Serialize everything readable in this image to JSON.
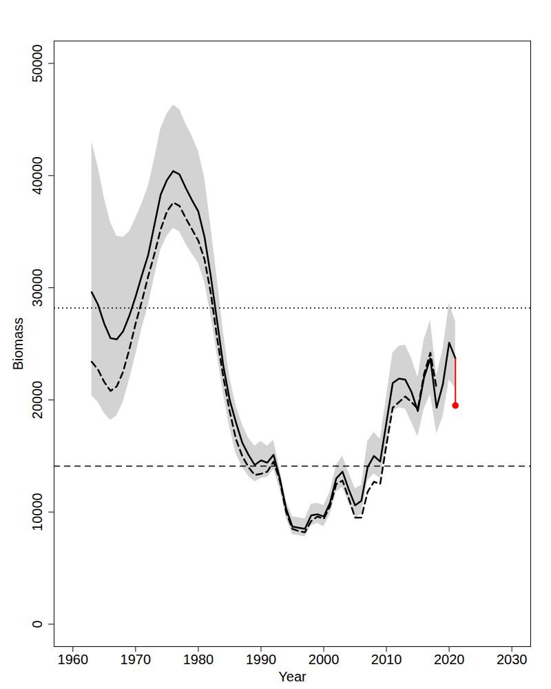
{
  "chart_data": {
    "type": "line",
    "x_label": "Year",
    "y_label": "Biomass",
    "x": [
      1963,
      1964,
      1965,
      1966,
      1967,
      1968,
      1969,
      1970,
      1971,
      1972,
      1973,
      1974,
      1975,
      1976,
      1977,
      1978,
      1979,
      1980,
      1981,
      1982,
      1983,
      1984,
      1985,
      1986,
      1987,
      1988,
      1989,
      1990,
      1991,
      1992,
      1993,
      1994,
      1995,
      1996,
      1997,
      1998,
      1999,
      2000,
      2001,
      2002,
      2003,
      2004,
      2005,
      2006,
      2007,
      2008,
      2009,
      2010,
      2011,
      2012,
      2013,
      2014,
      2015,
      2016,
      2017,
      2018,
      2019,
      2020,
      2021
    ],
    "series": [
      {
        "color": "black",
        "line_style": "solid",
        "values": [
          29600,
          28500,
          26800,
          25500,
          25400,
          26100,
          27500,
          29200,
          31100,
          32900,
          35600,
          38300,
          39600,
          40400,
          40100,
          38900,
          37800,
          36800,
          34500,
          31000,
          27000,
          23000,
          20000,
          18000,
          16200,
          15100,
          14200,
          14600,
          14400,
          15100,
          13000,
          10300,
          8700,
          8600,
          8500,
          9700,
          9800,
          9600,
          10800,
          13000,
          13600,
          12000,
          10600,
          11000,
          14000,
          15000,
          14500,
          18000,
          21500,
          21900,
          21800,
          20700,
          19000,
          22000,
          23700,
          19300,
          21400,
          25100,
          23700
        ]
      },
      {
        "color": "black",
        "line_style": "dashed",
        "values": [
          23400,
          22700,
          21600,
          20800,
          21200,
          22500,
          24500,
          26800,
          28800,
          31000,
          33000,
          35200,
          36800,
          37600,
          37300,
          36200,
          35200,
          34200,
          32500,
          29500,
          25500,
          22000,
          19000,
          16500,
          15000,
          14000,
          13300,
          13400,
          13600,
          14500,
          12800,
          10000,
          8500,
          8300,
          8200,
          9200,
          9600,
          9400,
          10500,
          12500,
          12800,
          11200,
          9500,
          9500,
          11800,
          12700,
          12500,
          16000,
          19300,
          19800,
          20300,
          19800,
          19200,
          22300,
          24200,
          21000,
          null,
          null,
          null
        ]
      }
    ],
    "band": {
      "color": "#d3d3d3",
      "lower": [
        20400,
        19800,
        18800,
        18200,
        18600,
        19800,
        21800,
        24000,
        26400,
        28400,
        31000,
        33400,
        34600,
        35300,
        35000,
        33900,
        33000,
        32200,
        30500,
        27500,
        24000,
        20500,
        17500,
        15200,
        14000,
        13200,
        12700,
        13000,
        13100,
        13800,
        12000,
        9500,
        8000,
        7900,
        7800,
        8800,
        9000,
        8700,
        9800,
        11800,
        12200,
        10800,
        9500,
        9800,
        12800,
        13400,
        13000,
        16000,
        19000,
        19300,
        19200,
        18000,
        16700,
        19200,
        20500,
        17000,
        18500,
        21800,
        21000
      ],
      "upper": [
        43000,
        40800,
        38000,
        35800,
        34600,
        34500,
        35000,
        36200,
        37500,
        39000,
        41500,
        44200,
        45500,
        46300,
        45900,
        44600,
        43500,
        42200,
        39800,
        35400,
        30800,
        26000,
        22000,
        19500,
        17800,
        16600,
        15900,
        16300,
        15900,
        16400,
        13800,
        11000,
        9600,
        9500,
        9400,
        10700,
        10800,
        10600,
        11800,
        14200,
        15000,
        13500,
        12100,
        12400,
        16300,
        17100,
        16500,
        20300,
        24200,
        24800,
        24900,
        23700,
        22000,
        25400,
        27100,
        22200,
        24500,
        28600,
        27000
      ]
    },
    "reference_lines": [
      {
        "value": 28200,
        "line_style": "dotted",
        "color": "black"
      },
      {
        "value": 14100,
        "line_style": "dashed",
        "color": "black"
      }
    ],
    "projection": {
      "x": 2021,
      "from": 23700,
      "to": 19500,
      "color": "red",
      "marker": "circle"
    },
    "xlim": [
      1957,
      2033
    ],
    "xticks": [
      1960,
      1970,
      1980,
      1990,
      2000,
      2010,
      2020,
      2030
    ],
    "ylim": [
      -2000,
      52000
    ],
    "yticks": [
      0,
      10000,
      20000,
      30000,
      40000,
      50000
    ],
    "grid": false
  }
}
